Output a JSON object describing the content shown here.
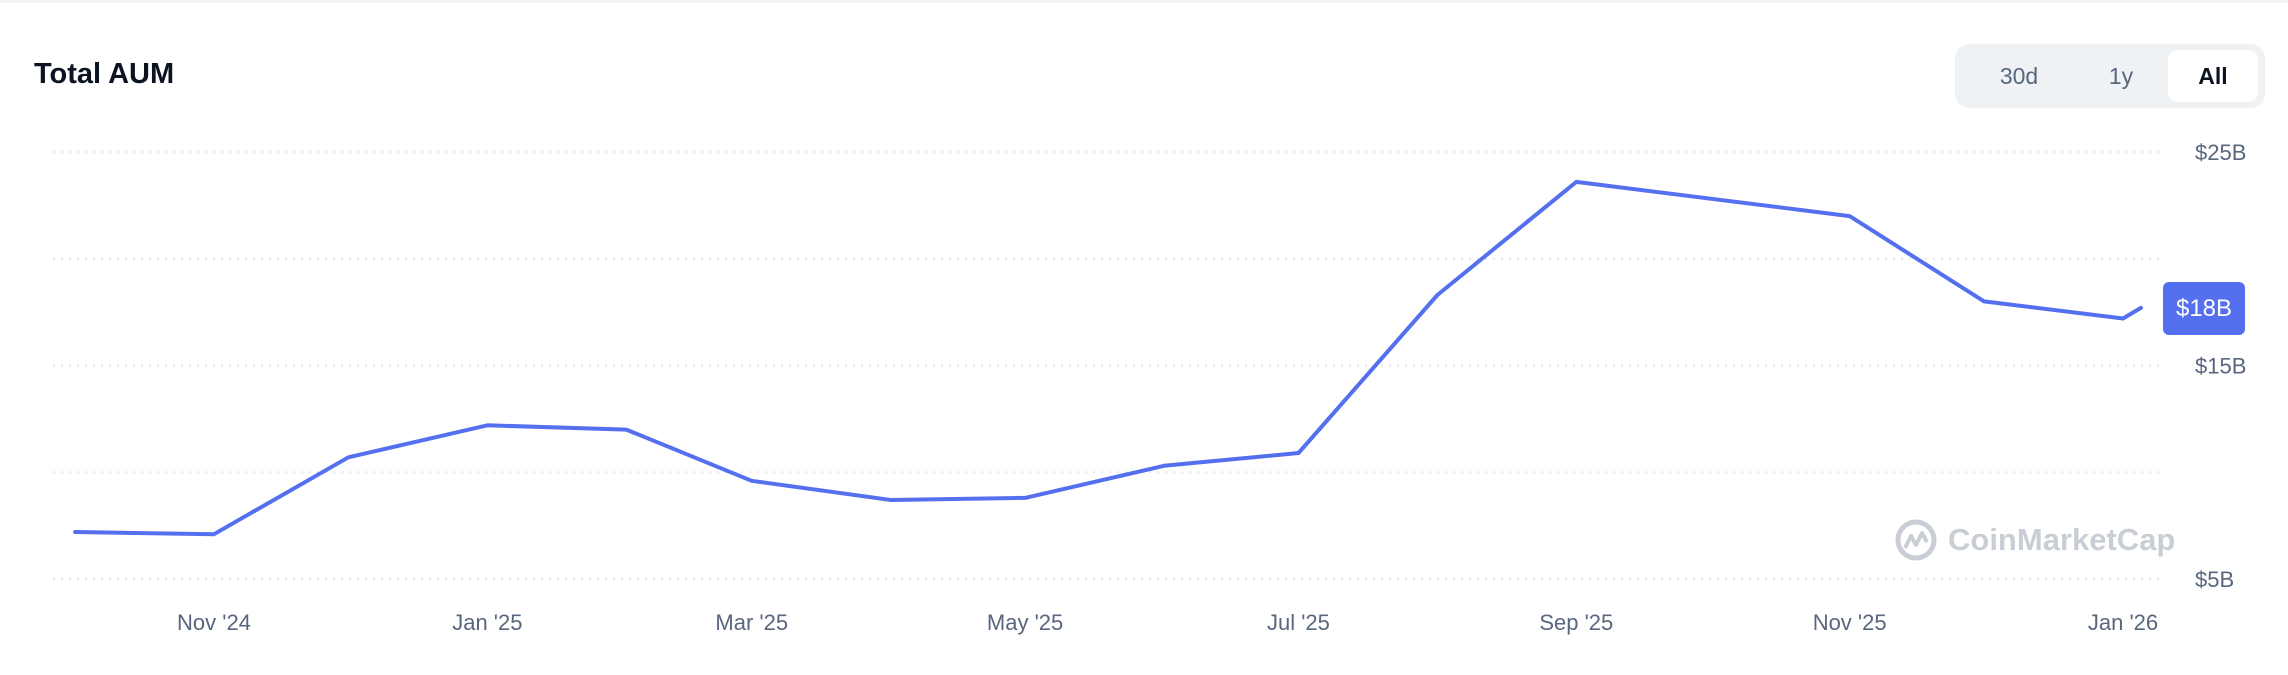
{
  "header": {
    "title": "Total AUM"
  },
  "range_toggle": {
    "options": [
      "30d",
      "1y",
      "All"
    ],
    "selected": "All"
  },
  "watermark": "CoinMarketCap",
  "chart_data": {
    "type": "line",
    "title": "Total AUM",
    "color": "#5470ee",
    "x": [
      "2024-10-01",
      "2024-11-01",
      "2024-12-01",
      "2025-01-01",
      "2025-02-01",
      "2025-03-01",
      "2025-04-01",
      "2025-05-01",
      "2025-06-01",
      "2025-07-01",
      "2025-08-01",
      "2025-09-01",
      "2025-11-01",
      "2025-12-01",
      "2026-01-01",
      "2026-01-05"
    ],
    "values": [
      7.2,
      7.1,
      10.7,
      12.2,
      12.0,
      9.6,
      8.7,
      8.8,
      10.3,
      10.9,
      18.3,
      23.6,
      22.0,
      18.0,
      17.2,
      17.7
    ],
    "unit": "B USD",
    "ylim": [
      5,
      25
    ],
    "y_gridlines": [
      5,
      10,
      15,
      20,
      25
    ],
    "y_tick_labels": [
      {
        "value": 25,
        "label": "$25B"
      },
      {
        "value": 15,
        "label": "$15B"
      },
      {
        "value": 5,
        "label": "$5B"
      }
    ],
    "x_tick_labels": [
      {
        "date": "2024-11-01",
        "label": "Nov '24"
      },
      {
        "date": "2025-01-01",
        "label": "Jan '25"
      },
      {
        "date": "2025-03-01",
        "label": "Mar '25"
      },
      {
        "date": "2025-05-01",
        "label": "May '25"
      },
      {
        "date": "2025-07-01",
        "label": "Jul '25"
      },
      {
        "date": "2025-09-01",
        "label": "Sep '25"
      },
      {
        "date": "2025-11-01",
        "label": "Nov '25"
      },
      {
        "date": "2026-01-01",
        "label": "Jan '26"
      }
    ],
    "current_value_label": "$18B",
    "grid": true,
    "y_axis_position": "right"
  }
}
